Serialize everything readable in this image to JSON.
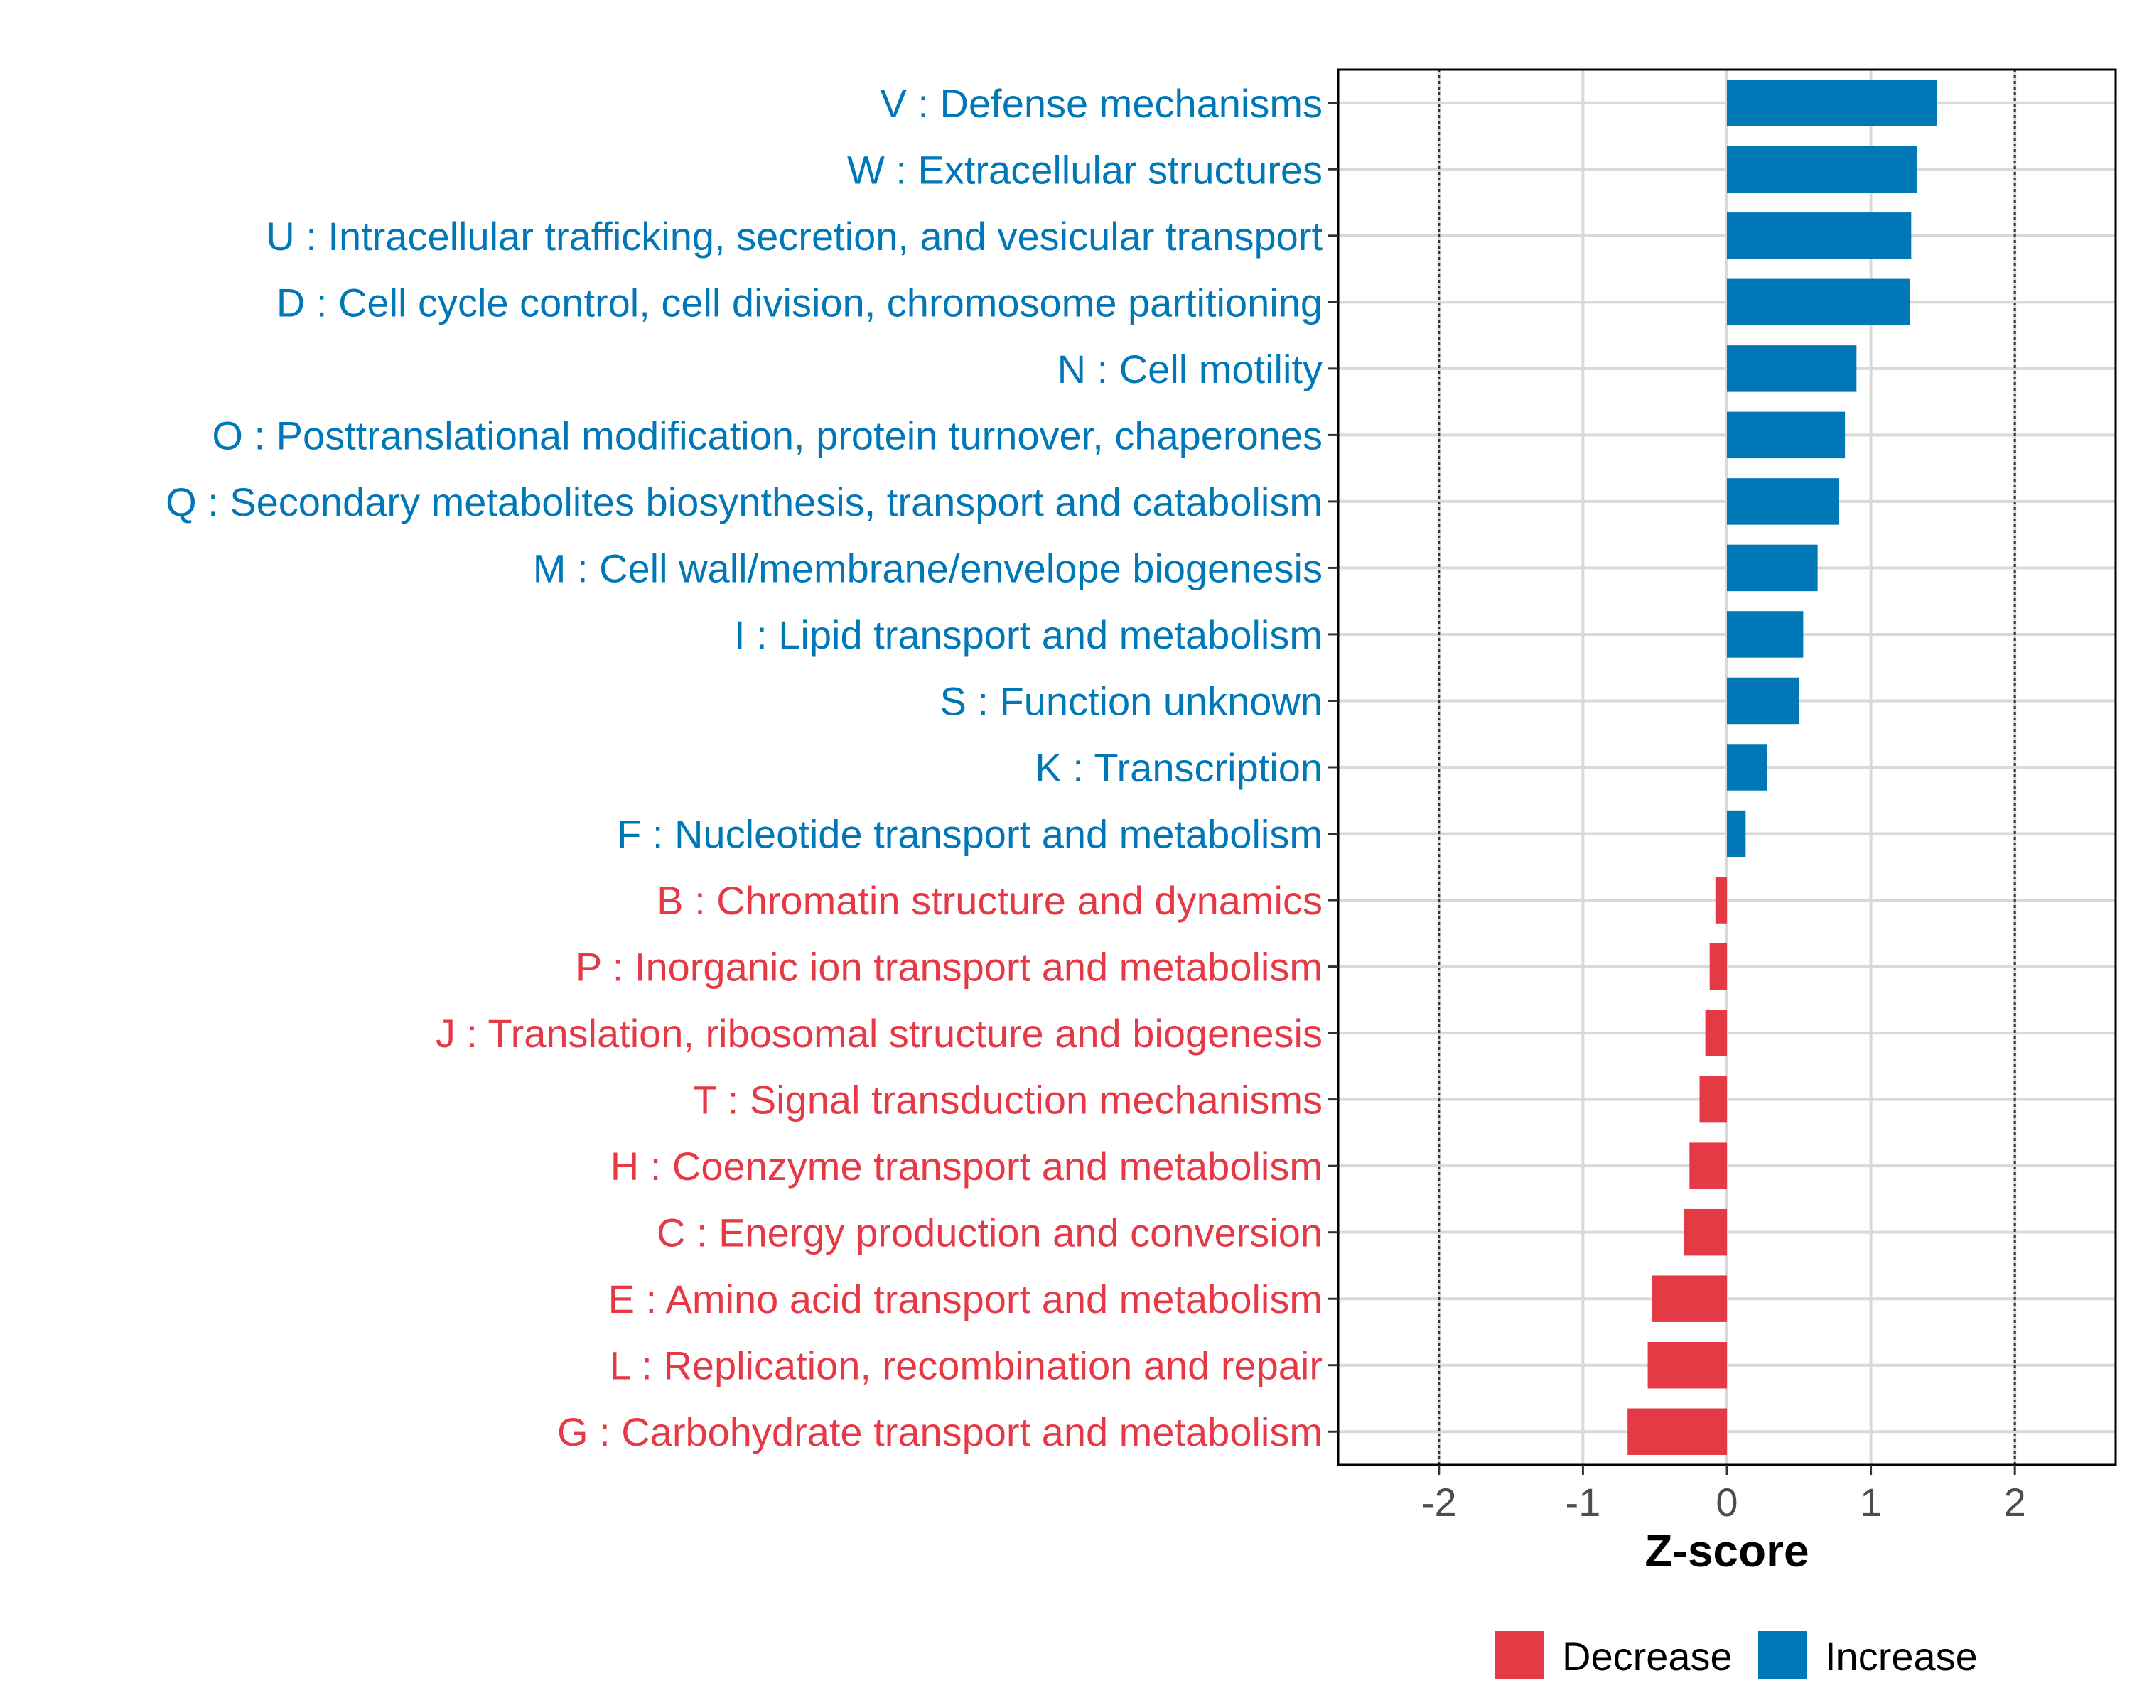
{
  "chart_data": {
    "type": "bar",
    "orientation": "horizontal",
    "xlabel": "Z-score",
    "ylabel": "",
    "xlim": [
      -2.7,
      2.7
    ],
    "xticks": [
      "-2",
      "-1",
      "0",
      "1",
      "2"
    ],
    "reference_lines": [
      -2,
      2
    ],
    "grid": true,
    "legend_position": "bottom",
    "legend": [
      {
        "label": "Decrease",
        "color": "#E63946"
      },
      {
        "label": "Increase",
        "color": "#0077B6"
      }
    ],
    "colors": {
      "Decrease": "#E63946",
      "Increase": "#0077B6"
    },
    "categories": [
      "V : Defense mechanisms",
      "W : Extracellular structures",
      "U : Intracellular trafficking, secretion, and vesicular transport",
      "D : Cell cycle control, cell division, chromosome partitioning",
      "N : Cell motility",
      "O : Posttranslational modification, protein turnover, chaperones",
      "Q : Secondary metabolites biosynthesis, transport and catabolism",
      "M : Cell wall/membrane/envelope biogenesis",
      "I : Lipid transport and metabolism",
      "S : Function unknown",
      "K : Transcription",
      "F : Nucleotide transport and metabolism",
      "B : Chromatin structure and dynamics",
      "P : Inorganic ion transport and metabolism",
      "J : Translation, ribosomal structure and biogenesis",
      "T : Signal transduction mechanisms",
      "H : Coenzyme transport and metabolism",
      "C : Energy production and conversion",
      "E : Amino acid transport and metabolism",
      "L : Replication, recombination and repair",
      "G : Carbohydrate transport and metabolism"
    ],
    "values": [
      1.46,
      1.32,
      1.28,
      1.27,
      0.9,
      0.82,
      0.78,
      0.63,
      0.53,
      0.5,
      0.28,
      0.13,
      -0.08,
      -0.12,
      -0.15,
      -0.19,
      -0.26,
      -0.3,
      -0.52,
      -0.55,
      -0.69
    ],
    "groups": [
      "Increase",
      "Increase",
      "Increase",
      "Increase",
      "Increase",
      "Increase",
      "Increase",
      "Increase",
      "Increase",
      "Increase",
      "Increase",
      "Increase",
      "Decrease",
      "Decrease",
      "Decrease",
      "Decrease",
      "Decrease",
      "Decrease",
      "Decrease",
      "Decrease",
      "Decrease"
    ]
  }
}
